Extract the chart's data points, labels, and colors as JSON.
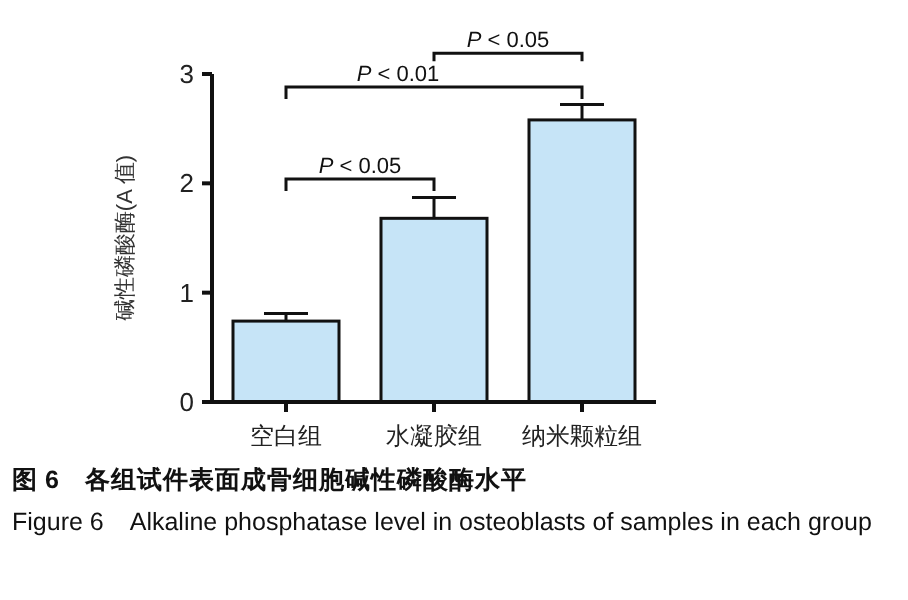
{
  "chart_data": {
    "type": "bar",
    "ylabel": "碱性磷酸酶(A 值)",
    "categories": [
      "空白组",
      "水凝胶组",
      "纳米颗粒组"
    ],
    "values": [
      0.74,
      1.68,
      2.58
    ],
    "errors": [
      0.07,
      0.19,
      0.14
    ],
    "color": "#c6e4f7",
    "ylim": [
      0,
      3
    ],
    "yticks": [
      0,
      1,
      2,
      3
    ],
    "grid": false,
    "annotations": [
      "P < 0.05",
      "P < 0.01",
      "P < 0.05",
      "图 6　各组试件表面成骨细胞碱性磷酸酶水平",
      "Figure 6　Alkaline phosphatase level in osteoblasts of samples in each group"
    ]
  }
}
